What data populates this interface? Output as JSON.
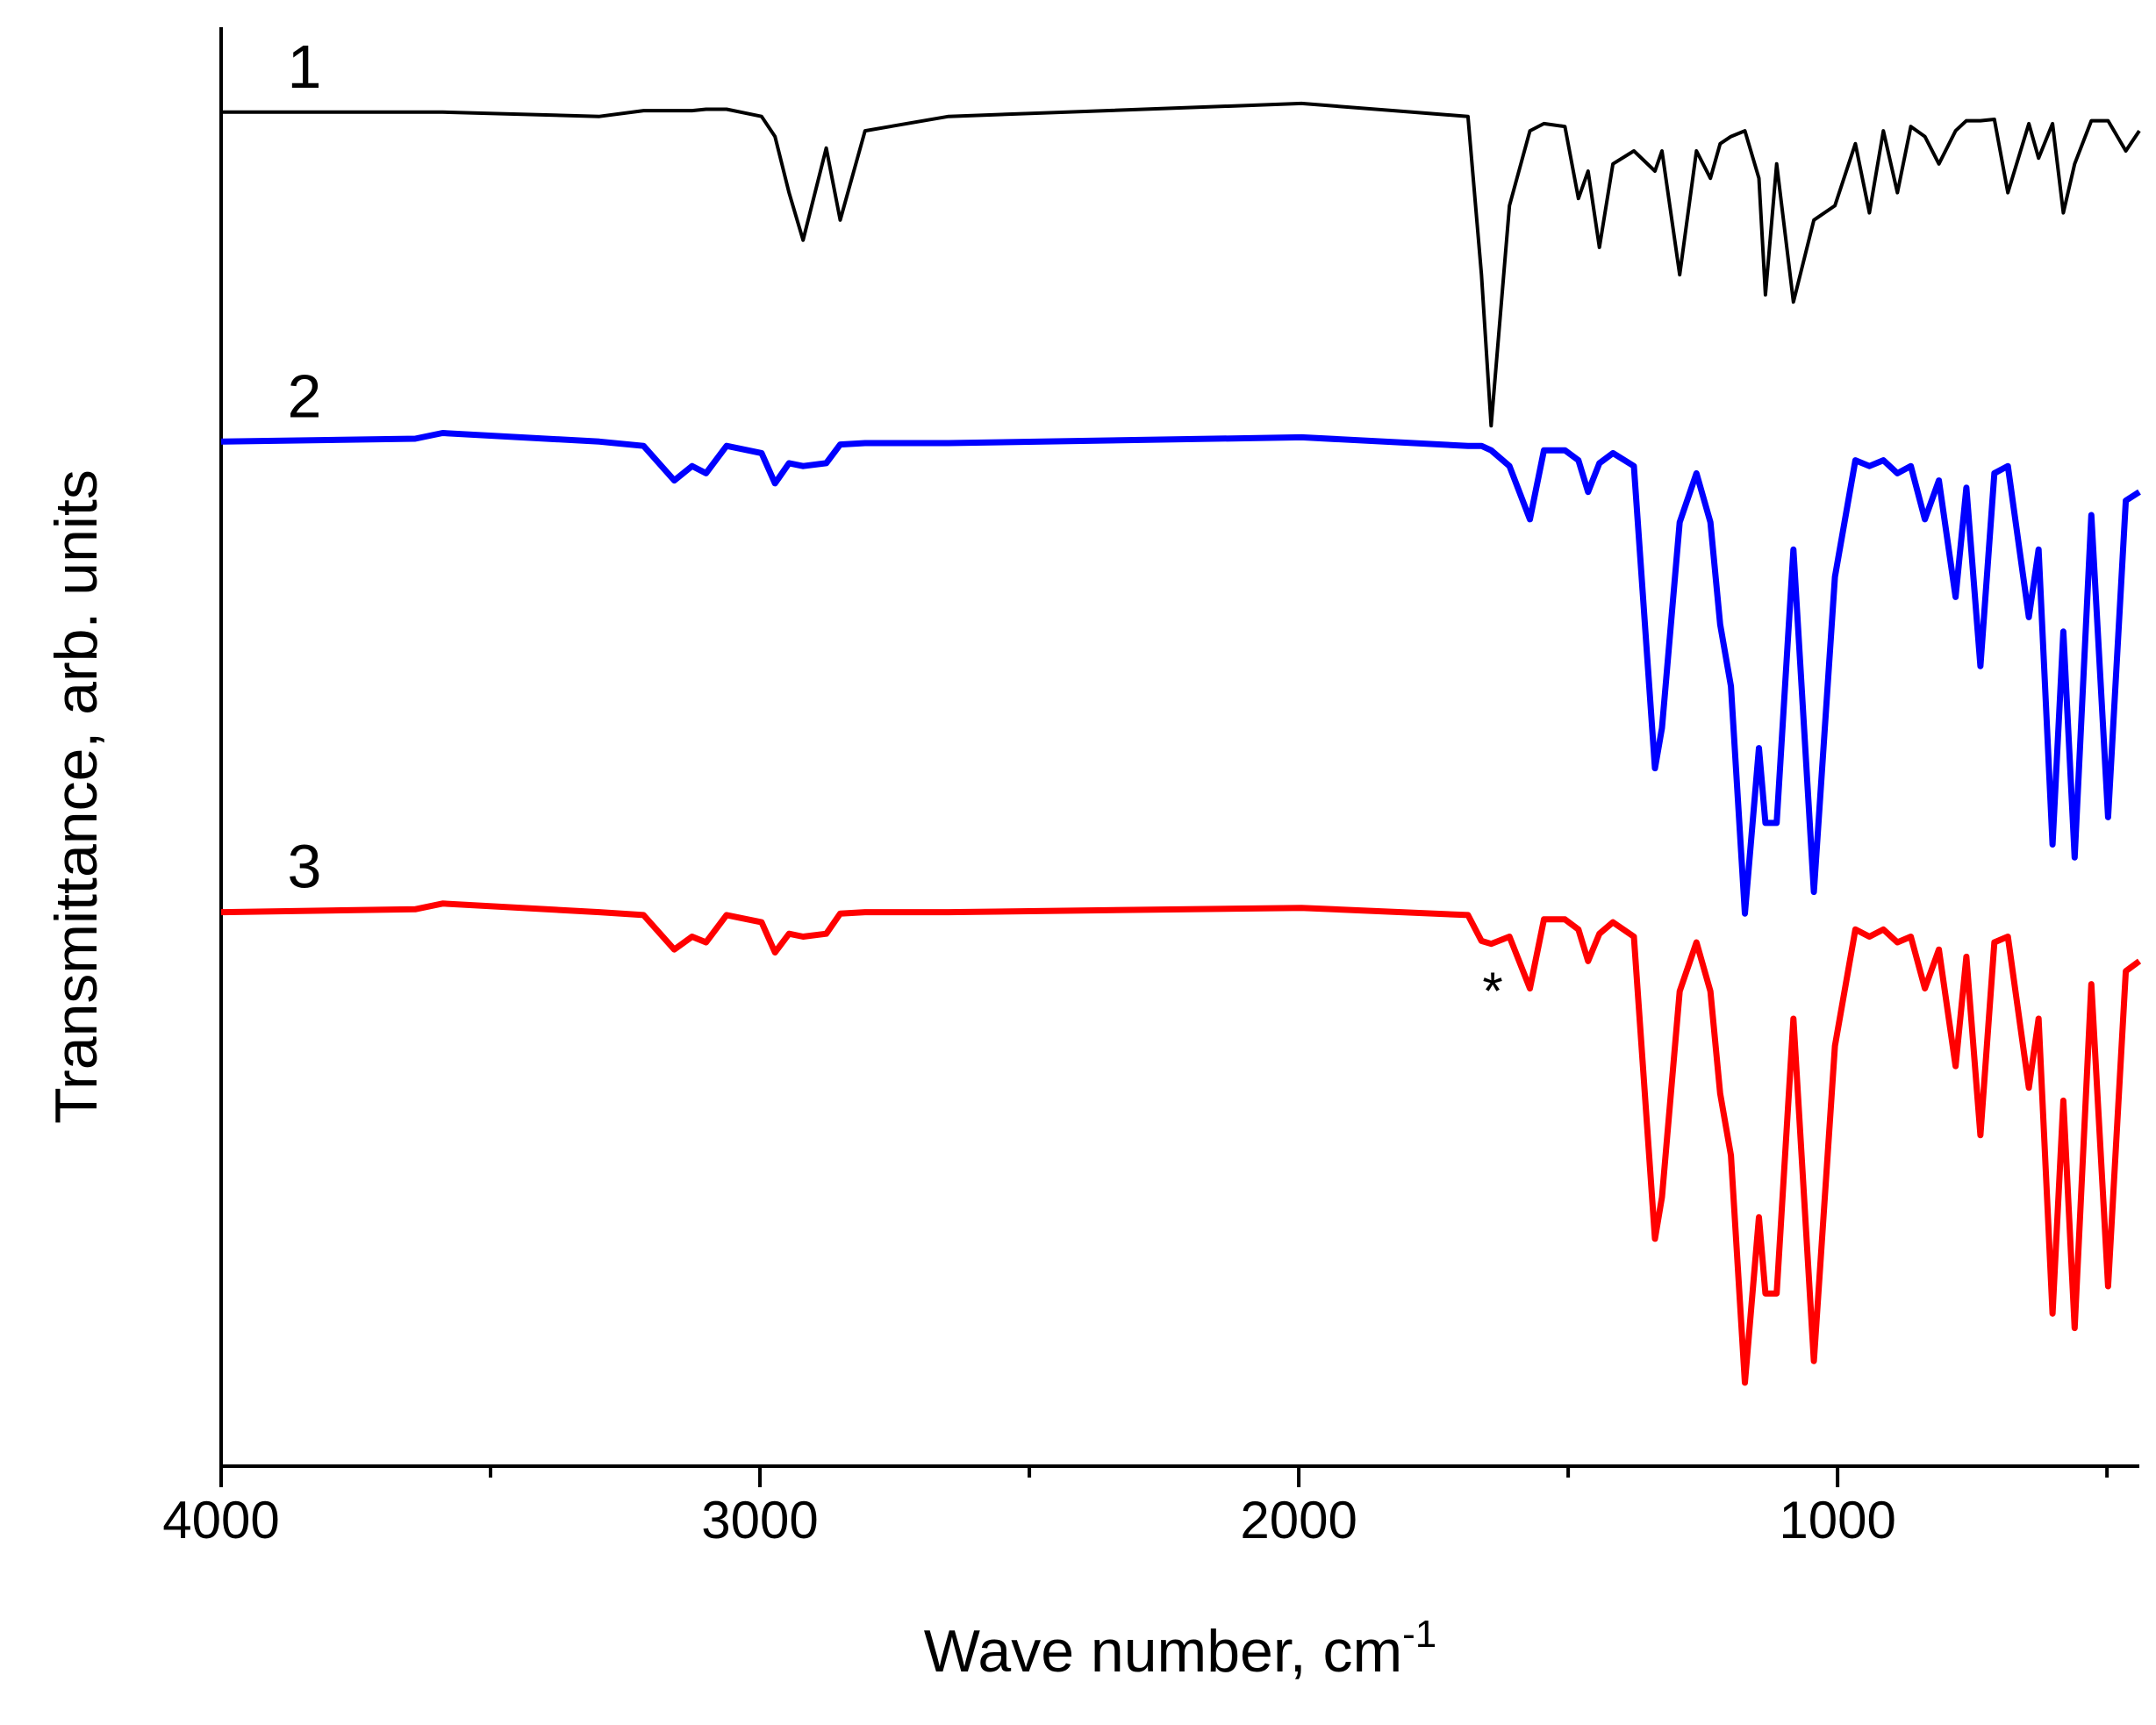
{
  "chart_data": {
    "type": "line",
    "x_label": {
      "text": "Wave number, cm",
      "superscript": "-1"
    },
    "y_label": "Transmittance, arb. units",
    "xlim": [
      4000,
      440
    ],
    "ylim": [
      0,
      100
    ],
    "xticks": [
      4000,
      3000,
      2000,
      1000
    ],
    "xminorticks": [
      3500,
      2500,
      1500,
      500
    ],
    "annotations": [
      "*"
    ],
    "x": [
      4000,
      3640,
      3589,
      3298,
      3216,
      3159,
      3126,
      3100,
      3062,
      2997,
      2972,
      2946,
      2920,
      2877,
      2851,
      2805,
      2650,
      1995,
      1686,
      1661,
      1643,
      1609,
      1571,
      1545,
      1506,
      1481,
      1463,
      1442,
      1417,
      1378,
      1339,
      1326,
      1293,
      1262,
      1236,
      1218,
      1198,
      1172,
      1146,
      1134,
      1113,
      1082,
      1044,
      1005,
      967,
      941,
      915,
      889,
      864,
      838,
      812,
      781,
      761,
      735,
      709,
      684,
      645,
      627,
      601,
      581,
      560,
      529,
      498,
      465,
      440
    ],
    "series": [
      {
        "name": "1",
        "color": "#000000",
        "width": 4,
        "values": [
          94.1,
          94.1,
          94.1,
          93.8,
          94.2,
          94.2,
          94.2,
          94.3,
          94.3,
          93.8,
          92.4,
          88.5,
          85.2,
          91.6,
          86.6,
          92.8,
          93.8,
          94.7,
          93.8,
          82.8,
          72.3,
          87.6,
          92.8,
          93.3,
          93.1,
          88.1,
          90.0,
          84.7,
          90.5,
          91.4,
          90.0,
          91.4,
          82.8,
          91.4,
          89.5,
          91.9,
          92.4,
          92.8,
          89.5,
          81.4,
          90.5,
          80.9,
          86.6,
          87.6,
          91.9,
          87.1,
          92.8,
          88.5,
          93.1,
          92.4,
          90.5,
          92.8,
          93.5,
          93.5,
          93.6,
          88.5,
          93.3,
          90.9,
          93.3,
          87.1,
          90.5,
          93.5,
          93.5,
          91.4,
          92.8
        ]
      },
      {
        "name": "2",
        "color": "#0000ff",
        "width": 7,
        "values": [
          71.2,
          71.4,
          71.8,
          71.2,
          70.9,
          68.5,
          69.5,
          69.0,
          70.9,
          70.4,
          68.3,
          69.7,
          69.5,
          69.7,
          71.0,
          71.1,
          71.1,
          71.5,
          70.9,
          70.9,
          70.6,
          69.5,
          65.8,
          70.6,
          70.6,
          69.9,
          67.7,
          69.7,
          70.4,
          69.5,
          48.5,
          51.3,
          65.6,
          69.0,
          65.6,
          58.5,
          54.2,
          38.4,
          49.9,
          44.7,
          44.7,
          63.7,
          39.9,
          61.8,
          69.9,
          69.5,
          69.9,
          69.0,
          69.5,
          65.8,
          68.5,
          60.4,
          68.0,
          55.6,
          69.0,
          69.5,
          59.0,
          63.7,
          43.2,
          58.0,
          42.3,
          66.1,
          45.1,
          67.1,
          67.7
        ]
      },
      {
        "name": "3",
        "color": "#ff0000",
        "width": 7,
        "values": [
          38.5,
          38.7,
          39.1,
          38.5,
          38.3,
          35.9,
          36.8,
          36.4,
          38.3,
          37.8,
          35.7,
          37.0,
          36.8,
          37.0,
          38.4,
          38.5,
          38.5,
          38.8,
          38.3,
          36.5,
          36.3,
          36.8,
          33.2,
          38.0,
          38.0,
          37.3,
          35.1,
          37.0,
          37.8,
          36.8,
          15.8,
          18.7,
          33.0,
          36.4,
          33.0,
          25.9,
          21.6,
          5.8,
          17.3,
          12.0,
          12.0,
          31.1,
          7.3,
          29.2,
          37.3,
          36.8,
          37.3,
          36.4,
          36.8,
          33.2,
          35.9,
          27.8,
          35.4,
          23.0,
          36.4,
          36.8,
          26.3,
          31.1,
          10.6,
          25.4,
          9.6,
          33.5,
          12.5,
          34.4,
          35.1
        ]
      }
    ]
  }
}
